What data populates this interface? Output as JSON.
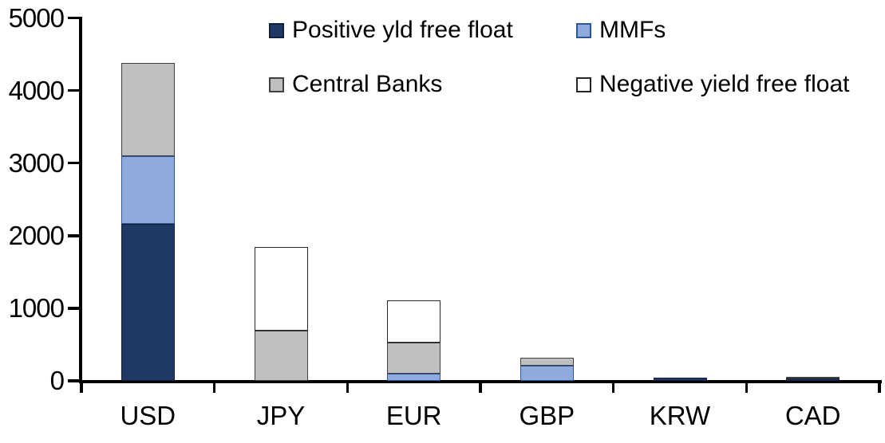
{
  "chart_data": {
    "type": "bar",
    "stacked": true,
    "title": "",
    "xlabel": "",
    "ylabel": "",
    "categories": [
      "USD",
      "JPY",
      "EUR",
      "GBP",
      "KRW",
      "CAD"
    ],
    "series": [
      {
        "name": "Positive yld free float",
        "color": "#1F3864",
        "border_color": "#10203B",
        "values": [
          2160,
          0,
          0,
          0,
          40,
          30
        ]
      },
      {
        "name": "MMFs",
        "color": "#8FAADC",
        "border_color": "#2E5597",
        "values": [
          940,
          0,
          100,
          210,
          0,
          0
        ]
      },
      {
        "name": "Central Banks",
        "color": "#BFBFBF",
        "border_color": "#404040",
        "values": [
          1280,
          690,
          430,
          110,
          0,
          30
        ]
      },
      {
        "name": "Negative yield free float",
        "color": "#FFFFFF",
        "border_color": "#262626",
        "values": [
          0,
          1150,
          580,
          0,
          0,
          0
        ]
      }
    ],
    "ylim": [
      0,
      5000
    ],
    "yticks": [
      0,
      1000,
      2000,
      3000,
      4000,
      5000
    ],
    "grid": false,
    "legend_position": "top",
    "axis_color": "#000000",
    "background_color": "#FFFFFF"
  }
}
